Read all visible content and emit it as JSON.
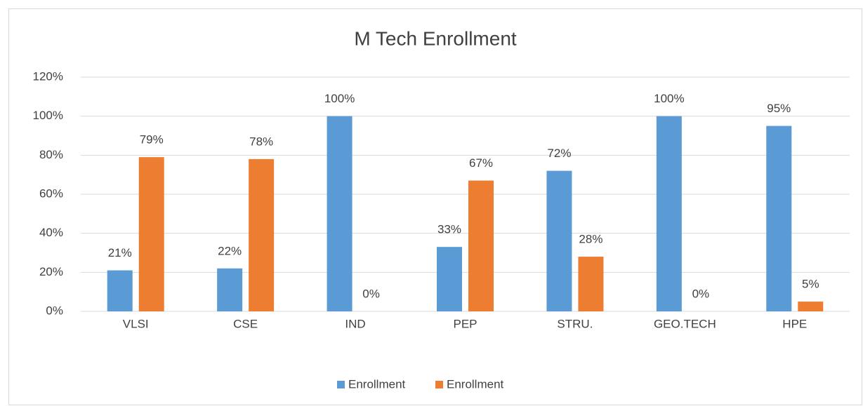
{
  "chart_data": {
    "type": "bar",
    "title": "M Tech Enrollment",
    "categories": [
      "VLSI",
      "CSE",
      "IND",
      "PEP",
      "STRU.",
      "GEO.TECH",
      "HPE"
    ],
    "series": [
      {
        "name": "Enrollment",
        "color": "#5b9bd5",
        "values": [
          21,
          22,
          100,
          33,
          72,
          100,
          95
        ],
        "value_labels": [
          "21%",
          "22%",
          "100%",
          "33%",
          "72%",
          "100%",
          "95%"
        ]
      },
      {
        "name": "Enrollment",
        "color": "#ed7d31",
        "values": [
          79,
          78,
          0,
          67,
          28,
          0,
          5
        ],
        "value_labels": [
          "79%",
          "78%",
          "0%",
          "67%",
          "28%",
          "0%",
          "5%"
        ]
      }
    ],
    "ylim": [
      0,
      120
    ],
    "yticks": [
      {
        "value": 0,
        "label": "0%"
      },
      {
        "value": 20,
        "label": "20%"
      },
      {
        "value": 40,
        "label": "40%"
      },
      {
        "value": 60,
        "label": "60%"
      },
      {
        "value": 80,
        "label": "80%"
      },
      {
        "value": 100,
        "label": "100%"
      },
      {
        "value": 120,
        "label": "120%"
      }
    ],
    "grid": true,
    "legend": "bottom"
  }
}
